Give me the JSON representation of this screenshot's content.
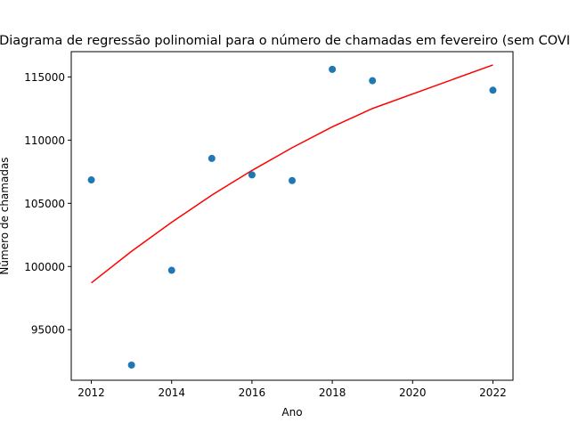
{
  "chart_data": {
    "type": "scatter",
    "title": "Diagrama de regressão polinomial para o número de chamadas em fevereiro (sem COVID)",
    "xlabel": "Ano",
    "ylabel": "Número de chamadas",
    "xlim": [
      2011.5,
      2022.5
    ],
    "ylim": [
      91000,
      117000
    ],
    "xticks": [
      2012,
      2014,
      2016,
      2018,
      2020,
      2022
    ],
    "xtick_labels": [
      "2012",
      "2014",
      "2016",
      "2018",
      "2020",
      "2022"
    ],
    "yticks": [
      95000,
      100000,
      105000,
      110000,
      115000
    ],
    "ytick_labels": [
      "95000",
      "100000",
      "105000",
      "110000",
      "115000"
    ],
    "grid": false,
    "series": [
      {
        "kind": "scatter",
        "color": "#1f77b4",
        "x": [
          2012,
          2013,
          2014,
          2015,
          2016,
          2017,
          2018,
          2019,
          2022
        ],
        "y": [
          106850,
          92200,
          99700,
          108550,
          107250,
          106800,
          115600,
          114700,
          113950
        ]
      },
      {
        "kind": "line",
        "color": "#ff0000",
        "x": [
          2012,
          2013,
          2014,
          2015,
          2016,
          2017,
          2018,
          2019,
          2022
        ],
        "y": [
          98700,
          101200,
          103500,
          105650,
          107600,
          109400,
          111050,
          112500,
          115950
        ]
      }
    ]
  }
}
